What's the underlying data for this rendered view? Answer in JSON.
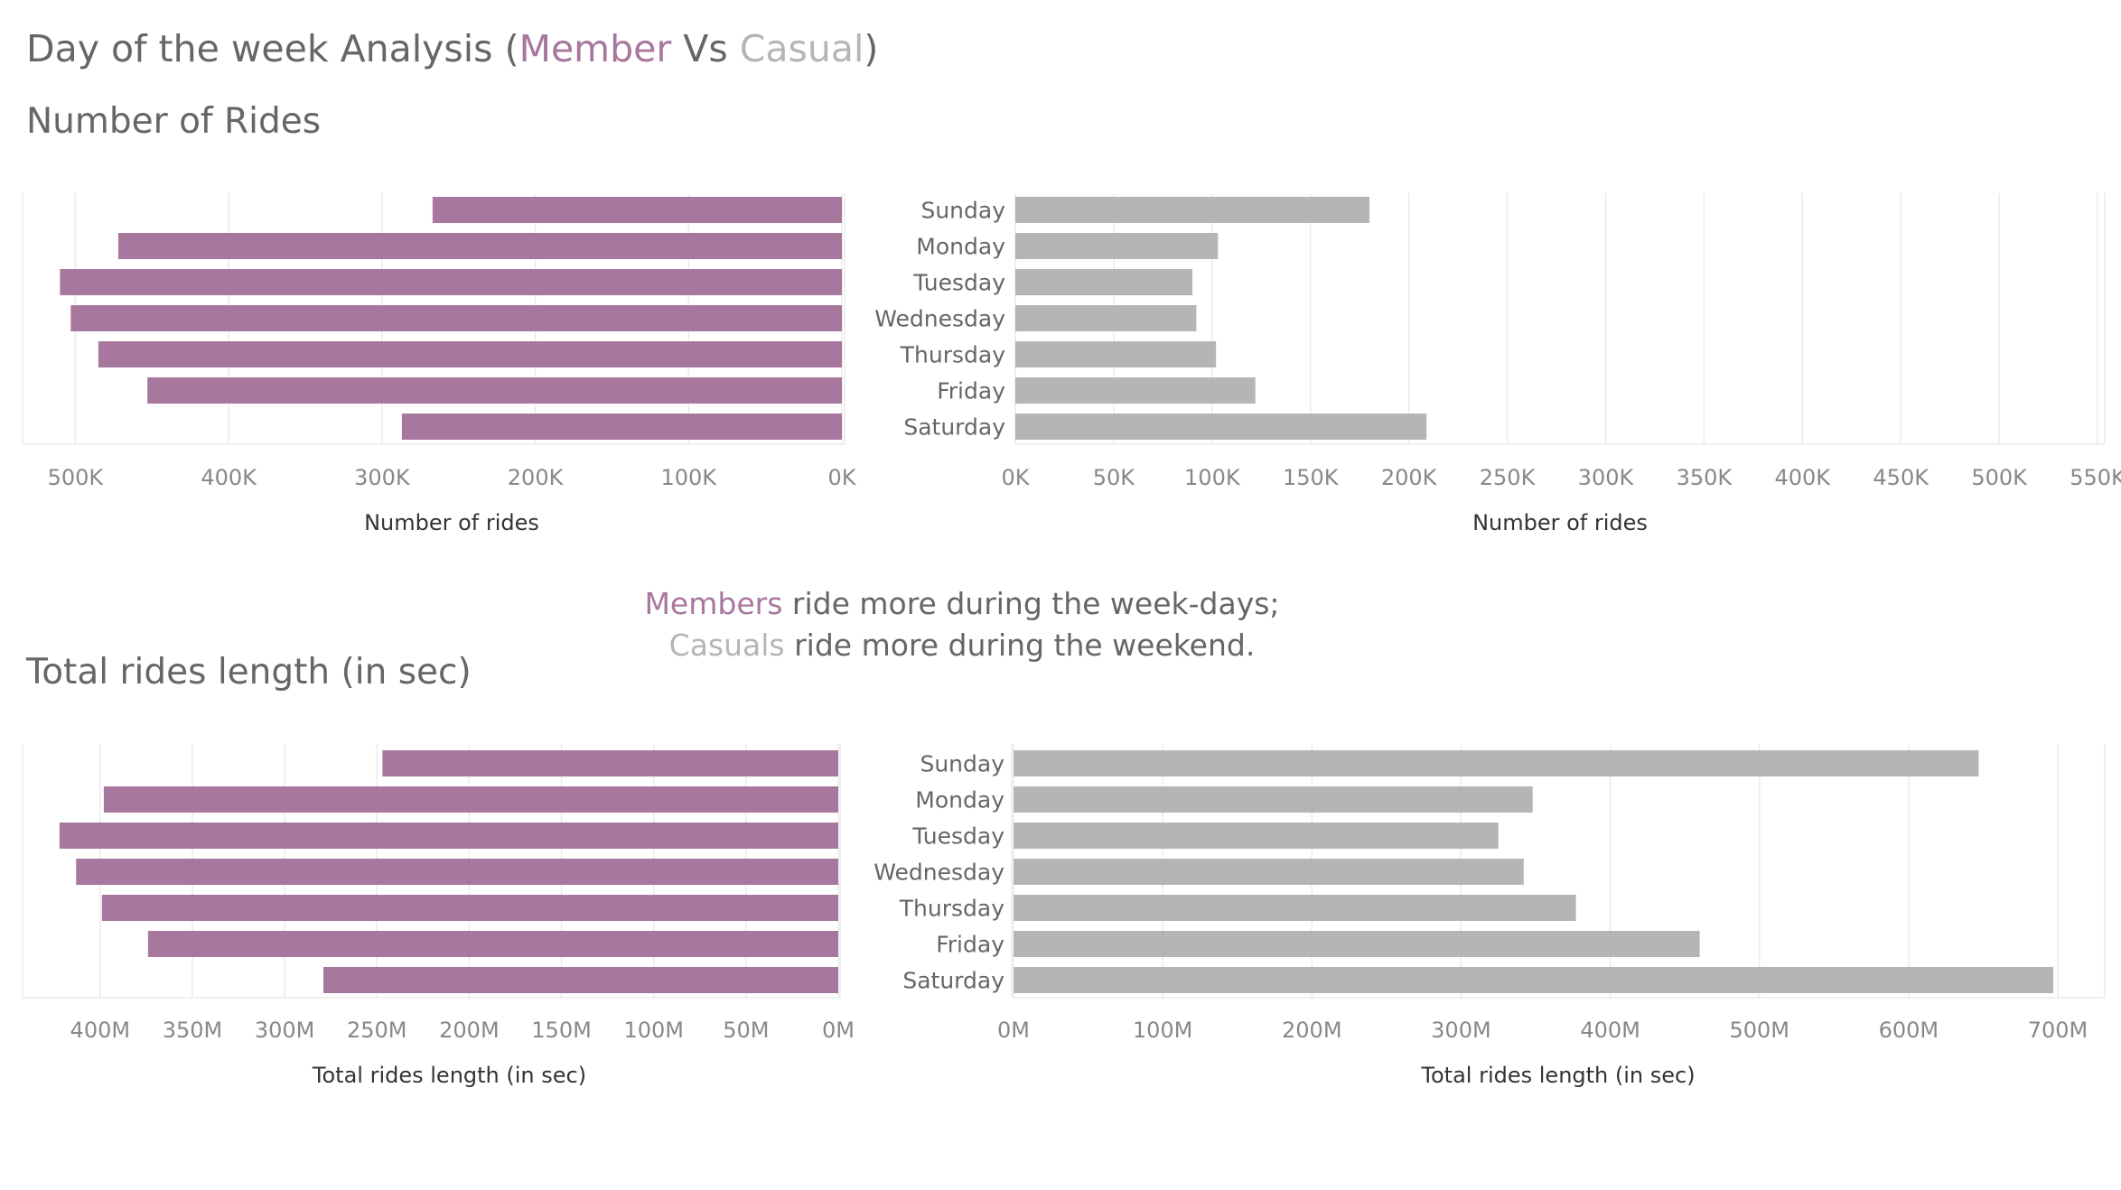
{
  "page": {
    "title_prefix": "Day of the week Analysis (",
    "title_member": "Member",
    "title_vs": " Vs ",
    "title_casual": "Casual",
    "title_suffix": ")",
    "section1_title": "Number of Rides",
    "section2_title": "Total rides length (in sec)",
    "annotation_line1_highlight": "Members",
    "annotation_line1_rest": " ride more during the week-days;",
    "annotation_line2_highlight": "Casuals",
    "annotation_line2_rest": " ride more during the weekend."
  },
  "colors": {
    "member": "#a8779e",
    "casual": "#b4b6b6",
    "text": "#666666",
    "tick": "#888888",
    "axis_title": "#333333",
    "grid": "#ebebeb"
  },
  "chart_data": [
    {
      "type": "bar",
      "orientation": "horizontal-reversed",
      "series": [
        {
          "name": "Member",
          "values": [
            267000,
            472000,
            510000,
            503000,
            485000,
            453000,
            287000
          ]
        }
      ],
      "xlabel": "Number of rides",
      "xlim": [
        0,
        535000
      ],
      "ticks": [
        500000,
        400000,
        300000,
        200000,
        100000,
        0
      ],
      "tick_labels": [
        "500K",
        "400K",
        "300K",
        "200K",
        "100K",
        "0K"
      ],
      "grid": true
    },
    {
      "type": "bar",
      "orientation": "horizontal",
      "categories": [
        "Sunday",
        "Monday",
        "Tuesday",
        "Wednesday",
        "Thursday",
        "Friday",
        "Saturday"
      ],
      "series": [
        {
          "name": "Casual",
          "values": [
            180000,
            103000,
            90000,
            92000,
            102000,
            122000,
            209000
          ]
        }
      ],
      "xlabel": "Number of rides",
      "xlim": [
        0,
        550000
      ],
      "ticks": [
        0,
        50000,
        100000,
        150000,
        200000,
        250000,
        300000,
        350000,
        400000,
        450000,
        500000,
        550000
      ],
      "tick_labels": [
        "0K",
        "50K",
        "100K",
        "150K",
        "200K",
        "250K",
        "300K",
        "350K",
        "400K",
        "450K",
        "500K",
        "550K"
      ],
      "grid": true
    },
    {
      "type": "bar",
      "orientation": "horizontal-reversed",
      "series": [
        {
          "name": "Member",
          "values": [
            247000000,
            398000000,
            422000000,
            413000000,
            399000000,
            374000000,
            279000000
          ]
        }
      ],
      "xlabel": "Total rides length (in sec)",
      "xlim": [
        0,
        442000000
      ],
      "ticks": [
        400000000,
        350000000,
        300000000,
        250000000,
        200000000,
        150000000,
        100000000,
        50000000,
        0
      ],
      "tick_labels": [
        "400M",
        "350M",
        "300M",
        "250M",
        "200M",
        "150M",
        "100M",
        "50M",
        "0M"
      ],
      "grid": true
    },
    {
      "type": "bar",
      "orientation": "horizontal",
      "categories": [
        "Sunday",
        "Monday",
        "Tuesday",
        "Wednesday",
        "Thursday",
        "Friday",
        "Saturday"
      ],
      "series": [
        {
          "name": "Casual",
          "values": [
            647000000,
            348000000,
            325000000,
            342000000,
            377000000,
            460000000,
            697000000
          ]
        }
      ],
      "xlabel": "Total rides length (in sec)",
      "xlim": [
        0,
        700000000
      ],
      "ticks": [
        0,
        100000000,
        200000000,
        300000000,
        400000000,
        500000000,
        600000000,
        700000000
      ],
      "tick_labels": [
        "0M",
        "100M",
        "200M",
        "300M",
        "400M",
        "500M",
        "600M",
        "700M"
      ],
      "grid": true
    }
  ]
}
